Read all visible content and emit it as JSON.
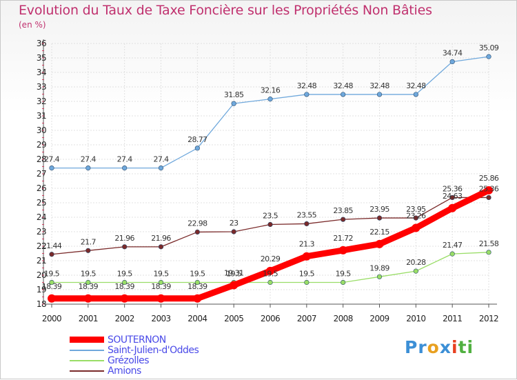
{
  "title": "Evolution du Taux de Taxe Foncière sur les Propriétés Non Bâties",
  "unit_label": "(en %)",
  "logo": {
    "parts": [
      "Pr",
      "o",
      "x",
      "i",
      "ti"
    ],
    "colors": [
      "#3c8fd6",
      "#e8a020",
      "#3c8fd6",
      "#e84020",
      "#50b040"
    ]
  },
  "chart_data": {
    "type": "line",
    "title": "Evolution du Taux de Taxe Foncière sur les Propriétés Non Bâties",
    "ylabel": "(en %)",
    "xlabel": "",
    "categories": [
      "2000",
      "2001",
      "2002",
      "2003",
      "2004",
      "2005",
      "2006",
      "2007",
      "2008",
      "2009",
      "2010",
      "2011",
      "2012"
    ],
    "ylim": [
      18,
      36
    ],
    "yticks": [
      18,
      19,
      20,
      21,
      22,
      23,
      24,
      25,
      26,
      27,
      28,
      29,
      30,
      31,
      32,
      33,
      34,
      35,
      36
    ],
    "grid": true,
    "legend_position": "bottom",
    "series": [
      {
        "name": "SOUTERNON",
        "color": "#ff0000",
        "values": [
          18.39,
          18.39,
          18.39,
          18.39,
          18.39,
          19.31,
          20.29,
          21.3,
          21.72,
          22.15,
          23.26,
          24.63,
          25.86
        ],
        "labels": [
          "18.39",
          "18.39",
          "18.39",
          "18.39",
          "18.39",
          "19.31",
          "20.29",
          "21.3",
          "21.72",
          "22.15",
          "23.26",
          "24.63",
          "25.86"
        ]
      },
      {
        "name": "Saint-Julien-d'Oddes",
        "color": "#6fa8dc",
        "values": [
          27.4,
          27.4,
          27.4,
          27.4,
          28.77,
          31.85,
          32.16,
          32.48,
          32.48,
          32.48,
          32.48,
          34.74,
          35.09
        ],
        "labels": [
          "27.4",
          "27.4",
          "27.4",
          "27.4",
          "28.77",
          "31.85",
          "32.16",
          "32.48",
          "32.48",
          "32.48",
          "32.48",
          "34.74",
          "35.09"
        ]
      },
      {
        "name": "Grézolles",
        "color": "#99dd66",
        "values": [
          19.5,
          19.5,
          19.5,
          19.5,
          19.5,
          19.5,
          19.5,
          19.5,
          19.5,
          19.89,
          20.28,
          21.47,
          21.58
        ],
        "labels": [
          "19.5",
          "19.5",
          "19.5",
          "19.5",
          "19.5",
          "19.5",
          "19.5",
          "19.5",
          "19.5",
          "19.89",
          "20.28",
          "21.47",
          "21.58"
        ]
      },
      {
        "name": "Amions",
        "color": "#7a2a2a",
        "values": [
          21.44,
          21.7,
          21.96,
          21.96,
          22.98,
          23,
          23.5,
          23.55,
          23.85,
          23.95,
          23.95,
          25.36,
          25.36
        ],
        "labels": [
          "21.44",
          "21.7",
          "21.96",
          "21.96",
          "22.98",
          "23",
          "23.5",
          "23.55",
          "23.85",
          "23.95",
          "23.95",
          "25.36",
          "25.36"
        ]
      }
    ]
  }
}
